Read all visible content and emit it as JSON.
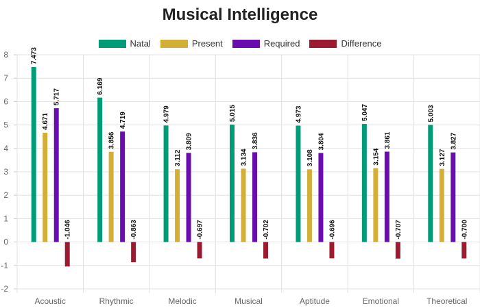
{
  "chart_data": {
    "type": "bar",
    "title": "Musical Intelligence",
    "categories": [
      "Acoustic",
      "Rhythmic",
      "Melodic",
      "Musical",
      "Aptitude",
      "Emotional",
      "Theoretical"
    ],
    "series": [
      {
        "name": "Natal",
        "color": "#009b77",
        "values": [
          7.473,
          6.169,
          4.979,
          5.015,
          4.973,
          5.047,
          5.003
        ]
      },
      {
        "name": "Present",
        "color": "#d4af37",
        "values": [
          4.671,
          3.856,
          3.112,
          3.134,
          3.108,
          3.154,
          3.127
        ]
      },
      {
        "name": "Required",
        "color": "#6a0dad",
        "values": [
          5.717,
          4.719,
          3.809,
          3.836,
          3.804,
          3.861,
          3.827
        ]
      },
      {
        "name": "Difference",
        "color": "#9b1b30",
        "values": [
          -1.046,
          -0.863,
          -0.697,
          -0.702,
          -0.696,
          -0.707,
          -0.7
        ]
      }
    ],
    "ylim": [
      -2,
      8
    ],
    "yticks": [
      -2,
      -1,
      0,
      1,
      2,
      3,
      4,
      5,
      6,
      7,
      8
    ],
    "grid": true,
    "legend_position": "top",
    "xlabel": "",
    "ylabel": ""
  }
}
